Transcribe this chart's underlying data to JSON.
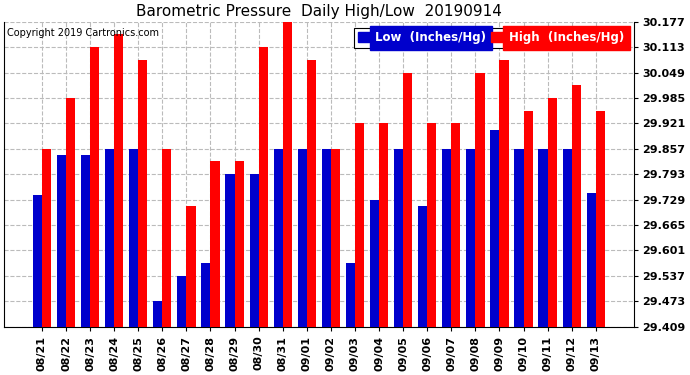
{
  "title": "Barometric Pressure  Daily High/Low  20190914",
  "copyright": "Copyright 2019 Cartronics.com",
  "legend_low": "Low  (Inches/Hg)",
  "legend_high": "High  (Inches/Hg)",
  "dates": [
    "08/21",
    "08/22",
    "08/23",
    "08/24",
    "08/25",
    "08/26",
    "08/27",
    "08/28",
    "08/29",
    "08/30",
    "08/31",
    "09/01",
    "09/02",
    "09/03",
    "09/04",
    "09/05",
    "09/06",
    "09/07",
    "09/08",
    "09/09",
    "09/10",
    "09/11",
    "09/12",
    "09/13"
  ],
  "low_values": [
    29.741,
    29.841,
    29.841,
    29.857,
    29.857,
    29.473,
    29.537,
    29.569,
    29.793,
    29.793,
    29.857,
    29.857,
    29.857,
    29.569,
    29.729,
    29.857,
    29.713,
    29.857,
    29.857,
    29.905,
    29.857,
    29.857,
    29.857,
    29.745
  ],
  "high_values": [
    29.857,
    29.985,
    30.113,
    30.145,
    30.081,
    29.857,
    29.713,
    29.825,
    29.825,
    30.113,
    30.177,
    30.081,
    29.857,
    29.921,
    29.921,
    30.049,
    29.921,
    29.921,
    30.049,
    30.081,
    29.953,
    29.985,
    30.017,
    29.953
  ],
  "ylim_min": 29.409,
  "ylim_max": 30.177,
  "yticks": [
    29.409,
    29.473,
    29.537,
    29.601,
    29.665,
    29.729,
    29.793,
    29.857,
    29.921,
    29.985,
    30.049,
    30.113,
    30.177
  ],
  "bg_color": "#ffffff",
  "plot_bg": "#ffffff",
  "grid_color": "#bbbbbb",
  "low_color": "#0000cc",
  "high_color": "#ff0000",
  "bar_width": 0.38,
  "title_fontsize": 11,
  "tick_fontsize": 8,
  "legend_fontsize": 8.5
}
